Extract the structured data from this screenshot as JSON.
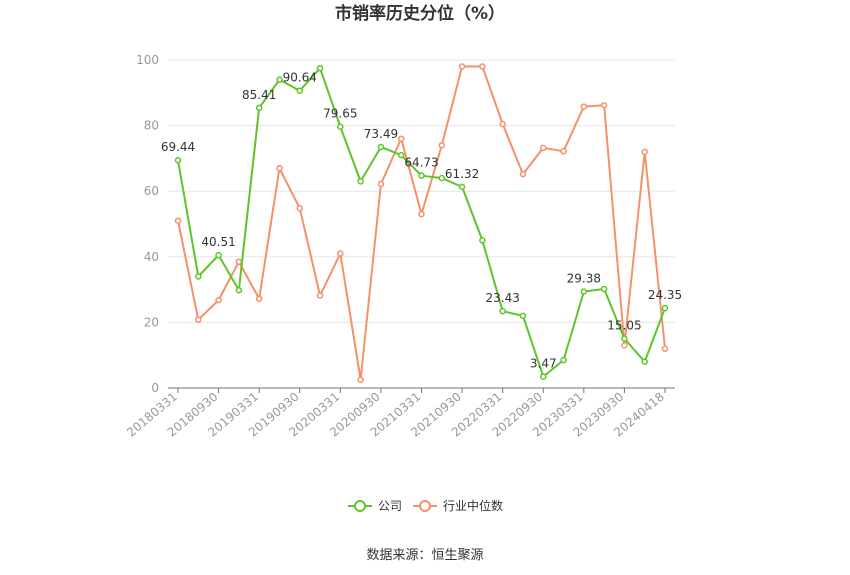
{
  "chart_data": {
    "type": "line",
    "title": "市销率历史分位（%）",
    "source": "数据来源：恒生聚源",
    "ylim": [
      0,
      100
    ],
    "yticks": [
      0,
      20,
      40,
      60,
      80,
      100
    ],
    "grid": true,
    "legend_position": "bottom",
    "x": [
      "20180331",
      "20180630",
      "20180930",
      "20181231",
      "20190331",
      "20190630",
      "20190930",
      "20191231",
      "20200331",
      "20200630",
      "20200930",
      "20201231",
      "20210331",
      "20210630",
      "20210930",
      "20211231",
      "20220331",
      "20220630",
      "20220930",
      "20221231",
      "20230331",
      "20230630",
      "20230930",
      "20231231",
      "20240418"
    ],
    "x_tick_labels": [
      "20180331",
      "20180930",
      "20190331",
      "20190930",
      "20200331",
      "20200930",
      "20210331",
      "20210930",
      "20220331",
      "20220930",
      "20230331",
      "20230930",
      "20240418"
    ],
    "series": [
      {
        "name": "公司",
        "color": "#5ec42a",
        "values": [
          69.44,
          34.0,
          40.51,
          29.8,
          85.41,
          94.0,
          90.64,
          97.5,
          79.65,
          63.0,
          73.49,
          71.0,
          64.73,
          64.0,
          61.32,
          45.0,
          23.43,
          22.0,
          3.47,
          8.5,
          29.38,
          30.2,
          15.05,
          8.0,
          24.35
        ],
        "labels": {
          "0": "69.44",
          "2": "40.51",
          "4": "85.41",
          "6": "90.64",
          "8": "79.65",
          "10": "73.49",
          "12": "64.73",
          "14": "61.32",
          "16": "23.43",
          "18": "3.47",
          "20": "29.38",
          "22": "15.05",
          "24": "24.35"
        }
      },
      {
        "name": "行业中位数",
        "color": "#f4916a",
        "values": [
          51.0,
          20.8,
          26.8,
          38.5,
          27.2,
          67.0,
          54.8,
          28.2,
          41.0,
          2.5,
          62.2,
          76.0,
          53.0,
          74.0,
          98.0,
          98.0,
          80.5,
          65.2,
          73.2,
          72.2,
          85.8,
          86.2,
          13.0,
          72.0,
          12.0
        ]
      }
    ]
  }
}
